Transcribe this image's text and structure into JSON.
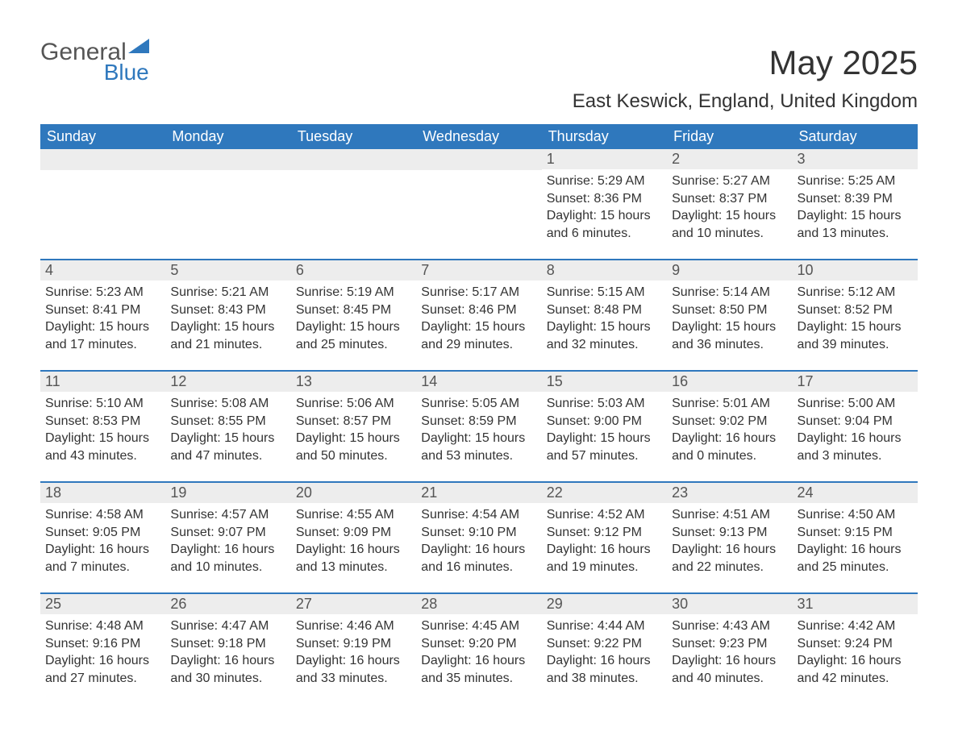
{
  "brand": {
    "word1": "General",
    "word2": "Blue"
  },
  "title": "May 2025",
  "location": "East Keswick, England, United Kingdom",
  "colors": {
    "accent": "#2f78bd",
    "header_text": "#ffffff",
    "date_bar_bg": "#ededed",
    "body_text": "#333333",
    "background": "#ffffff"
  },
  "typography": {
    "title_fontsize": 42,
    "location_fontsize": 24,
    "header_fontsize": 18,
    "cell_fontsize": 16
  },
  "day_headers": [
    "Sunday",
    "Monday",
    "Tuesday",
    "Wednesday",
    "Thursday",
    "Friday",
    "Saturday"
  ],
  "weeks": [
    [
      {
        "date": "",
        "sunrise": "",
        "sunset": "",
        "daylight": ""
      },
      {
        "date": "",
        "sunrise": "",
        "sunset": "",
        "daylight": ""
      },
      {
        "date": "",
        "sunrise": "",
        "sunset": "",
        "daylight": ""
      },
      {
        "date": "",
        "sunrise": "",
        "sunset": "",
        "daylight": ""
      },
      {
        "date": "1",
        "sunrise": "Sunrise: 5:29 AM",
        "sunset": "Sunset: 8:36 PM",
        "daylight": "Daylight: 15 hours and 6 minutes."
      },
      {
        "date": "2",
        "sunrise": "Sunrise: 5:27 AM",
        "sunset": "Sunset: 8:37 PM",
        "daylight": "Daylight: 15 hours and 10 minutes."
      },
      {
        "date": "3",
        "sunrise": "Sunrise: 5:25 AM",
        "sunset": "Sunset: 8:39 PM",
        "daylight": "Daylight: 15 hours and 13 minutes."
      }
    ],
    [
      {
        "date": "4",
        "sunrise": "Sunrise: 5:23 AM",
        "sunset": "Sunset: 8:41 PM",
        "daylight": "Daylight: 15 hours and 17 minutes."
      },
      {
        "date": "5",
        "sunrise": "Sunrise: 5:21 AM",
        "sunset": "Sunset: 8:43 PM",
        "daylight": "Daylight: 15 hours and 21 minutes."
      },
      {
        "date": "6",
        "sunrise": "Sunrise: 5:19 AM",
        "sunset": "Sunset: 8:45 PM",
        "daylight": "Daylight: 15 hours and 25 minutes."
      },
      {
        "date": "7",
        "sunrise": "Sunrise: 5:17 AM",
        "sunset": "Sunset: 8:46 PM",
        "daylight": "Daylight: 15 hours and 29 minutes."
      },
      {
        "date": "8",
        "sunrise": "Sunrise: 5:15 AM",
        "sunset": "Sunset: 8:48 PM",
        "daylight": "Daylight: 15 hours and 32 minutes."
      },
      {
        "date": "9",
        "sunrise": "Sunrise: 5:14 AM",
        "sunset": "Sunset: 8:50 PM",
        "daylight": "Daylight: 15 hours and 36 minutes."
      },
      {
        "date": "10",
        "sunrise": "Sunrise: 5:12 AM",
        "sunset": "Sunset: 8:52 PM",
        "daylight": "Daylight: 15 hours and 39 minutes."
      }
    ],
    [
      {
        "date": "11",
        "sunrise": "Sunrise: 5:10 AM",
        "sunset": "Sunset: 8:53 PM",
        "daylight": "Daylight: 15 hours and 43 minutes."
      },
      {
        "date": "12",
        "sunrise": "Sunrise: 5:08 AM",
        "sunset": "Sunset: 8:55 PM",
        "daylight": "Daylight: 15 hours and 47 minutes."
      },
      {
        "date": "13",
        "sunrise": "Sunrise: 5:06 AM",
        "sunset": "Sunset: 8:57 PM",
        "daylight": "Daylight: 15 hours and 50 minutes."
      },
      {
        "date": "14",
        "sunrise": "Sunrise: 5:05 AM",
        "sunset": "Sunset: 8:59 PM",
        "daylight": "Daylight: 15 hours and 53 minutes."
      },
      {
        "date": "15",
        "sunrise": "Sunrise: 5:03 AM",
        "sunset": "Sunset: 9:00 PM",
        "daylight": "Daylight: 15 hours and 57 minutes."
      },
      {
        "date": "16",
        "sunrise": "Sunrise: 5:01 AM",
        "sunset": "Sunset: 9:02 PM",
        "daylight": "Daylight: 16 hours and 0 minutes."
      },
      {
        "date": "17",
        "sunrise": "Sunrise: 5:00 AM",
        "sunset": "Sunset: 9:04 PM",
        "daylight": "Daylight: 16 hours and 3 minutes."
      }
    ],
    [
      {
        "date": "18",
        "sunrise": "Sunrise: 4:58 AM",
        "sunset": "Sunset: 9:05 PM",
        "daylight": "Daylight: 16 hours and 7 minutes."
      },
      {
        "date": "19",
        "sunrise": "Sunrise: 4:57 AM",
        "sunset": "Sunset: 9:07 PM",
        "daylight": "Daylight: 16 hours and 10 minutes."
      },
      {
        "date": "20",
        "sunrise": "Sunrise: 4:55 AM",
        "sunset": "Sunset: 9:09 PM",
        "daylight": "Daylight: 16 hours and 13 minutes."
      },
      {
        "date": "21",
        "sunrise": "Sunrise: 4:54 AM",
        "sunset": "Sunset: 9:10 PM",
        "daylight": "Daylight: 16 hours and 16 minutes."
      },
      {
        "date": "22",
        "sunrise": "Sunrise: 4:52 AM",
        "sunset": "Sunset: 9:12 PM",
        "daylight": "Daylight: 16 hours and 19 minutes."
      },
      {
        "date": "23",
        "sunrise": "Sunrise: 4:51 AM",
        "sunset": "Sunset: 9:13 PM",
        "daylight": "Daylight: 16 hours and 22 minutes."
      },
      {
        "date": "24",
        "sunrise": "Sunrise: 4:50 AM",
        "sunset": "Sunset: 9:15 PM",
        "daylight": "Daylight: 16 hours and 25 minutes."
      }
    ],
    [
      {
        "date": "25",
        "sunrise": "Sunrise: 4:48 AM",
        "sunset": "Sunset: 9:16 PM",
        "daylight": "Daylight: 16 hours and 27 minutes."
      },
      {
        "date": "26",
        "sunrise": "Sunrise: 4:47 AM",
        "sunset": "Sunset: 9:18 PM",
        "daylight": "Daylight: 16 hours and 30 minutes."
      },
      {
        "date": "27",
        "sunrise": "Sunrise: 4:46 AM",
        "sunset": "Sunset: 9:19 PM",
        "daylight": "Daylight: 16 hours and 33 minutes."
      },
      {
        "date": "28",
        "sunrise": "Sunrise: 4:45 AM",
        "sunset": "Sunset: 9:20 PM",
        "daylight": "Daylight: 16 hours and 35 minutes."
      },
      {
        "date": "29",
        "sunrise": "Sunrise: 4:44 AM",
        "sunset": "Sunset: 9:22 PM",
        "daylight": "Daylight: 16 hours and 38 minutes."
      },
      {
        "date": "30",
        "sunrise": "Sunrise: 4:43 AM",
        "sunset": "Sunset: 9:23 PM",
        "daylight": "Daylight: 16 hours and 40 minutes."
      },
      {
        "date": "31",
        "sunrise": "Sunrise: 4:42 AM",
        "sunset": "Sunset: 9:24 PM",
        "daylight": "Daylight: 16 hours and 42 minutes."
      }
    ]
  ]
}
